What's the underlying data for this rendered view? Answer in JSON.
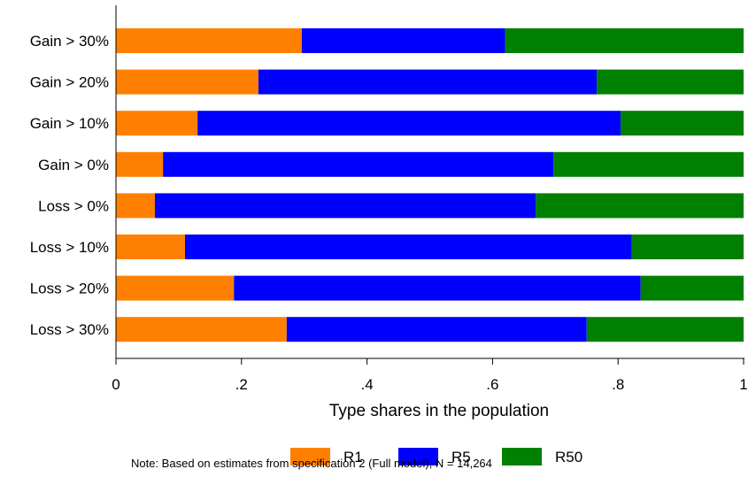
{
  "chart_data": {
    "type": "bar",
    "orientation": "horizontal",
    "stacked": true,
    "categories": [
      "Gain > 30%",
      "Gain > 20%",
      "Gain > 10%",
      "Gain > 0%",
      "Loss > 0%",
      "Loss > 10%",
      "Loss > 20%",
      "Loss > 30%"
    ],
    "series": [
      {
        "name": "R1",
        "color": "#ff8000",
        "values": [
          0.296,
          0.227,
          0.13,
          0.075,
          0.062,
          0.11,
          0.188,
          0.272
        ]
      },
      {
        "name": "R5",
        "color": "#0000ff",
        "values": [
          0.324,
          0.539,
          0.674,
          0.622,
          0.607,
          0.712,
          0.648,
          0.478
        ]
      },
      {
        "name": "R50",
        "color": "#008000",
        "values": [
          0.38,
          0.234,
          0.196,
          0.303,
          0.331,
          0.178,
          0.164,
          0.25
        ]
      }
    ],
    "xlabel": "Type shares in the population",
    "ylabel": "",
    "xlim": [
      0,
      1
    ],
    "xticks": [
      0,
      0.2,
      0.4,
      0.6,
      0.8,
      1
    ],
    "xtick_labels": [
      "0",
      ".2",
      ".4",
      ".6",
      ".8",
      "1"
    ],
    "grid": false,
    "legend": {
      "position": "bottom"
    },
    "note": "Note: Based on estimates from specification 2 (Full model), N = 14,264"
  }
}
